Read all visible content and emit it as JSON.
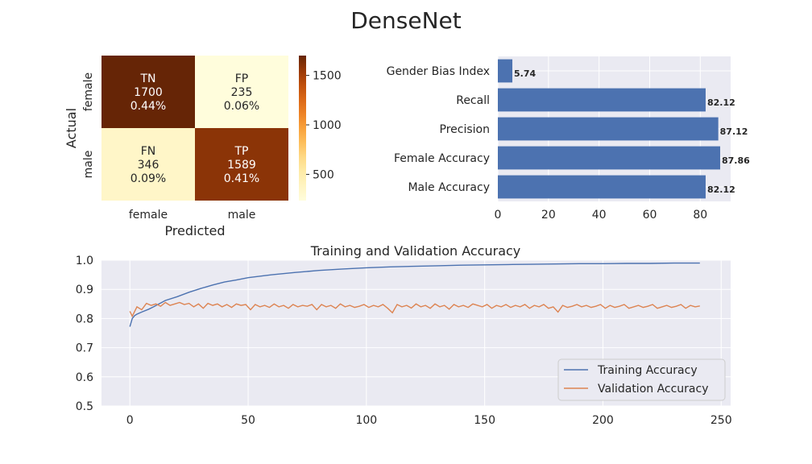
{
  "figure_title": "DenseNet",
  "colors": {
    "cm_low": "#fffddc",
    "cm_high": "#662506",
    "bar": "#4c72b0",
    "train": "#4c72b0",
    "val": "#dd8452",
    "panel_bg": "#eaeaf2",
    "grid": "#ffffff"
  },
  "chart_data": [
    {
      "type": "heatmap",
      "name": "confusion_matrix",
      "xlabel": "Predicted",
      "ylabel": "Actual",
      "x_ticklabels": [
        "female",
        "male"
      ],
      "y_ticklabels": [
        "female",
        "male"
      ],
      "cells": [
        {
          "row": 0,
          "col": 0,
          "label": "TN",
          "value": 1700,
          "pct": "0.44%"
        },
        {
          "row": 0,
          "col": 1,
          "label": "FP",
          "value": 235,
          "pct": "0.06%"
        },
        {
          "row": 1,
          "col": 0,
          "label": "FN",
          "value": 346,
          "pct": "0.09%"
        },
        {
          "row": 1,
          "col": 1,
          "label": "TP",
          "value": 1589,
          "pct": "0.41%"
        }
      ],
      "colorbar": {
        "min": 235,
        "max": 1700,
        "ticks": [
          500,
          1000,
          1500
        ]
      }
    },
    {
      "type": "bar",
      "orientation": "horizontal",
      "name": "metrics",
      "categories": [
        "Gender Bias Index",
        "Recall",
        "Precision",
        "Female Accuracy",
        "Male Accuracy"
      ],
      "values": [
        5.74,
        82.12,
        87.12,
        87.86,
        82.12
      ],
      "value_labels": [
        "5.74",
        "82.12",
        "87.12",
        "87.86",
        "82.12"
      ],
      "xlim": [
        0,
        92
      ],
      "xticks": [
        0,
        20,
        40,
        60,
        80
      ]
    },
    {
      "type": "line",
      "name": "accuracy_curves",
      "title": "Training and Validation Accuracy",
      "xlim": [
        -12,
        254
      ],
      "ylim": [
        0.5,
        1.0
      ],
      "xticks": [
        0,
        50,
        100,
        150,
        200,
        250
      ],
      "yticks": [
        "0.5",
        "0.6",
        "0.7",
        "0.8",
        "0.9",
        "1.0"
      ],
      "legend_position": "lower-right",
      "series": [
        {
          "name": "Training Accuracy",
          "x": [
            0,
            1,
            2,
            3,
            5,
            8,
            10,
            15,
            20,
            25,
            30,
            35,
            40,
            45,
            50,
            60,
            70,
            80,
            90,
            100,
            110,
            120,
            130,
            140,
            150,
            160,
            170,
            180,
            190,
            200,
            210,
            220,
            230,
            241
          ],
          "y": [
            0.772,
            0.8,
            0.81,
            0.815,
            0.822,
            0.832,
            0.84,
            0.862,
            0.875,
            0.89,
            0.903,
            0.915,
            0.925,
            0.932,
            0.94,
            0.95,
            0.958,
            0.965,
            0.97,
            0.974,
            0.977,
            0.979,
            0.981,
            0.983,
            0.984,
            0.985,
            0.986,
            0.987,
            0.988,
            0.988,
            0.989,
            0.989,
            0.99,
            0.99
          ]
        },
        {
          "name": "Validation Accuracy",
          "x": [
            0,
            1,
            3,
            5,
            7,
            9,
            11,
            13,
            15,
            17,
            19,
            21,
            23,
            25,
            27,
            29,
            31,
            33,
            35,
            37,
            39,
            41,
            43,
            45,
            47,
            49,
            51,
            53,
            55,
            57,
            59,
            61,
            63,
            65,
            67,
            69,
            71,
            73,
            75,
            77,
            79,
            81,
            83,
            85,
            87,
            89,
            91,
            93,
            95,
            97,
            99,
            101,
            103,
            105,
            107,
            109,
            111,
            113,
            115,
            117,
            119,
            121,
            123,
            125,
            127,
            129,
            131,
            133,
            135,
            137,
            139,
            141,
            143,
            145,
            147,
            149,
            151,
            153,
            155,
            157,
            159,
            161,
            163,
            165,
            167,
            169,
            171,
            173,
            175,
            177,
            179,
            181,
            183,
            185,
            187,
            189,
            191,
            193,
            195,
            197,
            199,
            201,
            203,
            205,
            207,
            209,
            211,
            213,
            215,
            217,
            219,
            221,
            223,
            225,
            227,
            229,
            231,
            233,
            235,
            237,
            239,
            241
          ],
          "y": [
            0.825,
            0.808,
            0.84,
            0.83,
            0.852,
            0.845,
            0.85,
            0.842,
            0.855,
            0.845,
            0.85,
            0.855,
            0.848,
            0.852,
            0.84,
            0.85,
            0.835,
            0.852,
            0.845,
            0.85,
            0.84,
            0.848,
            0.838,
            0.85,
            0.845,
            0.848,
            0.83,
            0.848,
            0.84,
            0.845,
            0.838,
            0.85,
            0.84,
            0.845,
            0.835,
            0.848,
            0.84,
            0.845,
            0.842,
            0.848,
            0.83,
            0.848,
            0.84,
            0.845,
            0.835,
            0.85,
            0.84,
            0.845,
            0.838,
            0.842,
            0.848,
            0.838,
            0.845,
            0.84,
            0.848,
            0.835,
            0.82,
            0.848,
            0.84,
            0.845,
            0.836,
            0.85,
            0.84,
            0.845,
            0.835,
            0.85,
            0.84,
            0.845,
            0.832,
            0.848,
            0.84,
            0.845,
            0.838,
            0.85,
            0.845,
            0.84,
            0.848,
            0.835,
            0.845,
            0.84,
            0.848,
            0.838,
            0.845,
            0.84,
            0.848,
            0.835,
            0.845,
            0.84,
            0.848,
            0.835,
            0.84,
            0.822,
            0.845,
            0.838,
            0.842,
            0.848,
            0.84,
            0.845,
            0.838,
            0.842,
            0.848,
            0.835,
            0.845,
            0.838,
            0.842,
            0.848,
            0.835,
            0.84,
            0.845,
            0.838,
            0.842,
            0.848,
            0.835,
            0.84,
            0.845,
            0.838,
            0.842,
            0.848,
            0.835,
            0.845,
            0.84,
            0.843
          ]
        }
      ]
    }
  ]
}
